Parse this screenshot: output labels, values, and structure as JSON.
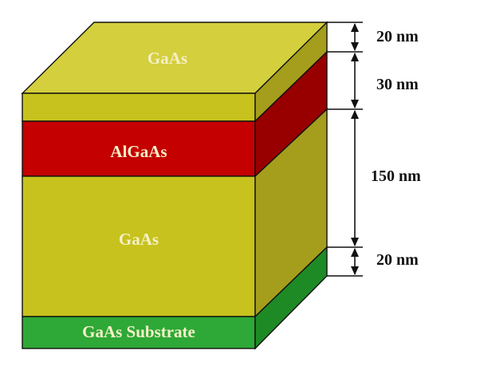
{
  "layers": [
    {
      "id": "top-gaas",
      "label": "GaAs",
      "thickness": "20 nm",
      "colors": {
        "front": "#c7c21d",
        "side": "#a49e1c",
        "top": "#d4cf3c"
      }
    },
    {
      "id": "algaas",
      "label": "AlGaAs",
      "thickness": "30 nm",
      "colors": {
        "front": "#c40000",
        "side": "#980000"
      }
    },
    {
      "id": "mid-gaas",
      "label": "GaAs",
      "thickness": "150 nm",
      "colors": {
        "front": "#c7c21d",
        "side": "#a49e1c"
      }
    },
    {
      "id": "substrate",
      "label": "GaAs Substrate",
      "thickness": "20 nm",
      "colors": {
        "front": "#2ea836",
        "side": "#1e8a25"
      }
    }
  ],
  "outline_color": "#111111"
}
